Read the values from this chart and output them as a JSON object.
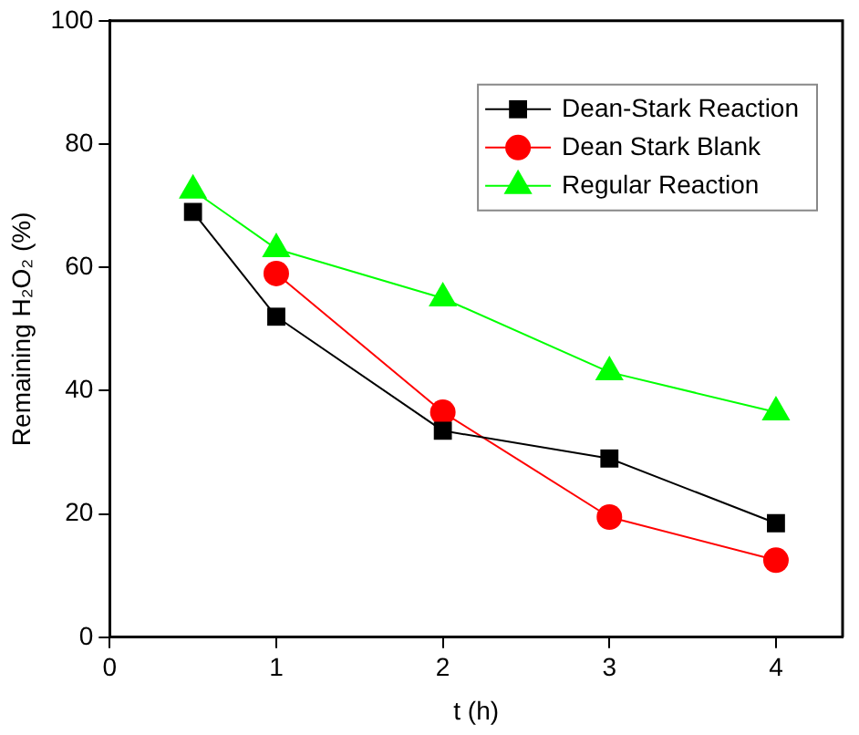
{
  "chart_data": {
    "type": "line",
    "xlabel": "t (h)",
    "ylabel": "Remaining H₂O₂ (%)",
    "xlim": [
      0,
      4.4
    ],
    "xticks": [
      0,
      1,
      2,
      3,
      4
    ],
    "ylim": [
      0,
      100
    ],
    "yticks": [
      0,
      20,
      40,
      60,
      80,
      100
    ],
    "grid": false,
    "legend": "top right",
    "line_style": "solid",
    "series": [
      {
        "name": "Dean-Stark Reaction",
        "color": "#000000",
        "marker": "square",
        "x": [
          0.5,
          1,
          2,
          3,
          4
        ],
        "values": [
          69,
          52,
          33.5,
          29,
          18.5
        ]
      },
      {
        "name": "Dean Stark Blank",
        "color": "#ff0000",
        "marker": "circle",
        "x": [
          1,
          2,
          3,
          4
        ],
        "values": [
          59,
          36.5,
          19.5,
          12.5
        ]
      },
      {
        "name": "Regular Reaction",
        "color": "#00ff00",
        "marker": "triangle",
        "x": [
          0.5,
          1,
          2,
          3,
          4
        ],
        "values": [
          72.5,
          63,
          55,
          43,
          36.5
        ]
      }
    ]
  }
}
